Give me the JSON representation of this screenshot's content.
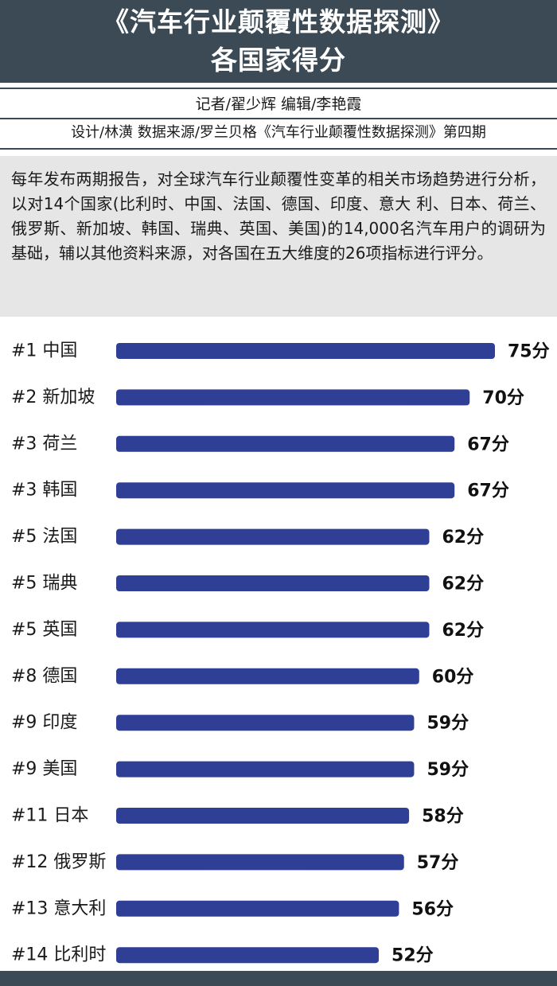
{
  "header": {
    "title_line1": "《汽车行业颠覆性数据探测》",
    "title_line2": "各国家得分"
  },
  "credits": "记者/翟少辉  编辑/李艳霞",
  "design_source": "设计/林潢  数据来源/罗兰贝格《汽车行业颠覆性数据探测》第四期",
  "intro": "每年发布两期报告，对全球汽车行业颠覆性变革的相关市场趋势进行分析，以对14个国家(比利时、中国、法国、德国、印度、意大 利、日本、荷兰、俄罗斯、新加坡、韩国、瑞典、英国、美国)的14,000名汽车用户的调研为基础，辅以其他资料来源，对各国在五大维度的26项指标进行评分。",
  "colors": {
    "header_bg": "#3b4a55",
    "bar": "#2f3f96",
    "intro_bg": "#e6e6e6"
  },
  "chart_data": {
    "type": "bar",
    "orientation": "horizontal",
    "categories": [
      "#1 中国",
      "#2 新加坡",
      "#3 荷兰",
      "#3 韩国",
      "#5 法国",
      "#5 瑞典",
      "#5 英国",
      "#8 德国",
      "#9 印度",
      "#9 美国",
      "#11 日本",
      "#12 俄罗斯",
      "#13 意大利",
      "#14 比利时"
    ],
    "values": [
      75,
      70,
      67,
      67,
      62,
      62,
      62,
      60,
      59,
      59,
      58,
      57,
      56,
      52
    ],
    "value_labels": [
      "75分",
      "70分",
      "67分",
      "67分",
      "62分",
      "62分",
      "62分",
      "60分",
      "59分",
      "59分",
      "58分",
      "57分",
      "56分",
      "52分"
    ],
    "title": "",
    "xlabel": "",
    "ylabel": "",
    "grid": false,
    "legend": "none"
  }
}
